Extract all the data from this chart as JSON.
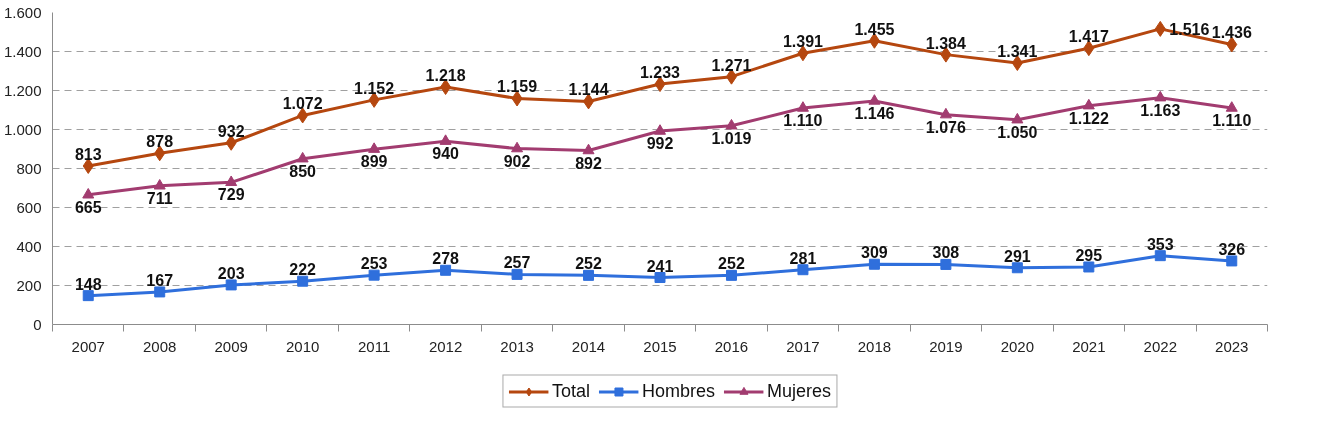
{
  "chart_data": {
    "type": "line",
    "categories": [
      "2007",
      "2008",
      "2009",
      "2010",
      "2011",
      "2012",
      "2013",
      "2014",
      "2015",
      "2016",
      "2017",
      "2018",
      "2019",
      "2020",
      "2021",
      "2022",
      "2023"
    ],
    "series": [
      {
        "name": "Total",
        "color": "#b5470f",
        "marker": "diamond",
        "values": [
          813,
          878,
          932,
          1072,
          1152,
          1218,
          1159,
          1144,
          1233,
          1271,
          1391,
          1455,
          1384,
          1341,
          1417,
          1516,
          1436
        ],
        "value_labels": [
          "813",
          "878",
          "932",
          "1.072",
          "1.152",
          "1.218",
          "1.159",
          "1.144",
          "1.233",
          "1.271",
          "1.391",
          "1.455",
          "1.384",
          "1.341",
          "1.417",
          "1.516",
          "1.436"
        ]
      },
      {
        "name": "Hombres",
        "color": "#2f6fdc",
        "marker": "square",
        "values": [
          148,
          167,
          203,
          222,
          253,
          278,
          257,
          252,
          241,
          252,
          281,
          309,
          308,
          291,
          295,
          353,
          326
        ],
        "value_labels": [
          "148",
          "167",
          "203",
          "222",
          "253",
          "278",
          "257",
          "252",
          "241",
          "252",
          "281",
          "309",
          "308",
          "291",
          "295",
          "353",
          "326"
        ]
      },
      {
        "name": "Mujeres",
        "color": "#a23c70",
        "marker": "triangle",
        "values": [
          665,
          711,
          729,
          850,
          899,
          940,
          902,
          892,
          992,
          1019,
          1110,
          1146,
          1076,
          1050,
          1122,
          1163,
          1110
        ],
        "value_labels": [
          "665",
          "711",
          "729",
          "850",
          "899",
          "940",
          "902",
          "892",
          "992",
          "1.019",
          "1.110",
          "1.146",
          "1.076",
          "1.050",
          "1.122",
          "1.163",
          "1.110"
        ]
      }
    ],
    "ylim": [
      0,
      1600
    ],
    "yticks": [
      0,
      200,
      400,
      600,
      800,
      {
        "value": 1000,
        "label": "1.000"
      },
      {
        "value": 1200,
        "label": "1.200"
      },
      {
        "value": 1400,
        "label": "1.400"
      },
      {
        "value": 1600,
        "label": "1.600"
      }
    ],
    "grid": "y",
    "legend": "bottom",
    "line_style": "solid"
  }
}
